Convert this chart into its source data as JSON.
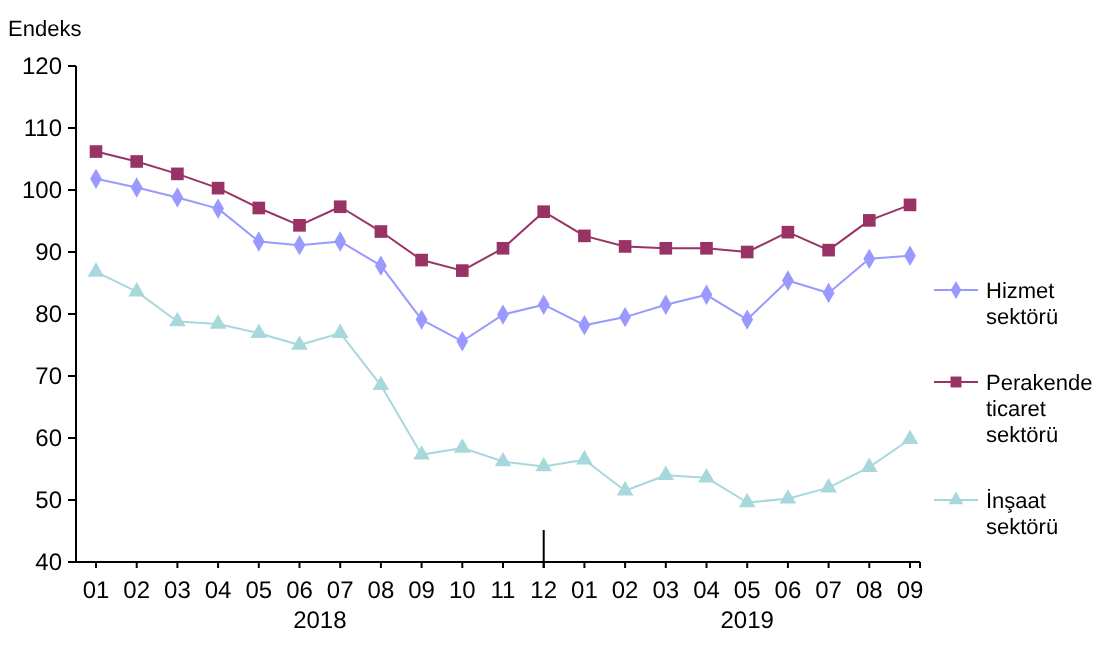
{
  "chart_data": {
    "type": "line",
    "ylabel": "Endeks",
    "categories": [
      "01",
      "02",
      "03",
      "04",
      "05",
      "06",
      "07",
      "08",
      "09",
      "10",
      "11",
      "12",
      "01",
      "02",
      "03",
      "04",
      "05",
      "06",
      "07",
      "08",
      "09"
    ],
    "series": [
      {
        "name": "Hizmet sektörü",
        "color": "#9999ff",
        "marker": "diamond",
        "values": [
          101.8,
          100.4,
          98.8,
          97.0,
          91.7,
          91.1,
          91.7,
          87.8,
          79.1,
          75.6,
          79.9,
          81.5,
          78.2,
          79.5,
          81.5,
          83.1,
          79.1,
          85.4,
          83.4,
          88.9,
          89.4
        ]
      },
      {
        "name": "Perakende ticaret sektörü",
        "color": "#993366",
        "marker": "square",
        "values": [
          106.2,
          104.6,
          102.6,
          100.3,
          97.1,
          94.3,
          97.3,
          93.3,
          88.7,
          87.0,
          90.6,
          96.5,
          92.6,
          90.9,
          90.6,
          90.6,
          90.0,
          93.2,
          90.3,
          95.1,
          97.6
        ]
      },
      {
        "name": "İnşaat sektörü",
        "color": "#a8d8dc",
        "marker": "triangle",
        "values": [
          86.8,
          83.6,
          78.8,
          78.4,
          76.9,
          75.0,
          76.9,
          68.5,
          57.3,
          58.4,
          56.2,
          55.4,
          56.5,
          51.5,
          54.0,
          53.6,
          49.6,
          50.2,
          52.0,
          55.3,
          59.8
        ]
      }
    ],
    "ylim": [
      40,
      120
    ],
    "yticks": [
      40,
      50,
      60,
      70,
      80,
      90,
      100,
      110,
      120
    ],
    "grid": false,
    "legend": "right",
    "annotations": [
      "2018",
      "2019"
    ]
  }
}
